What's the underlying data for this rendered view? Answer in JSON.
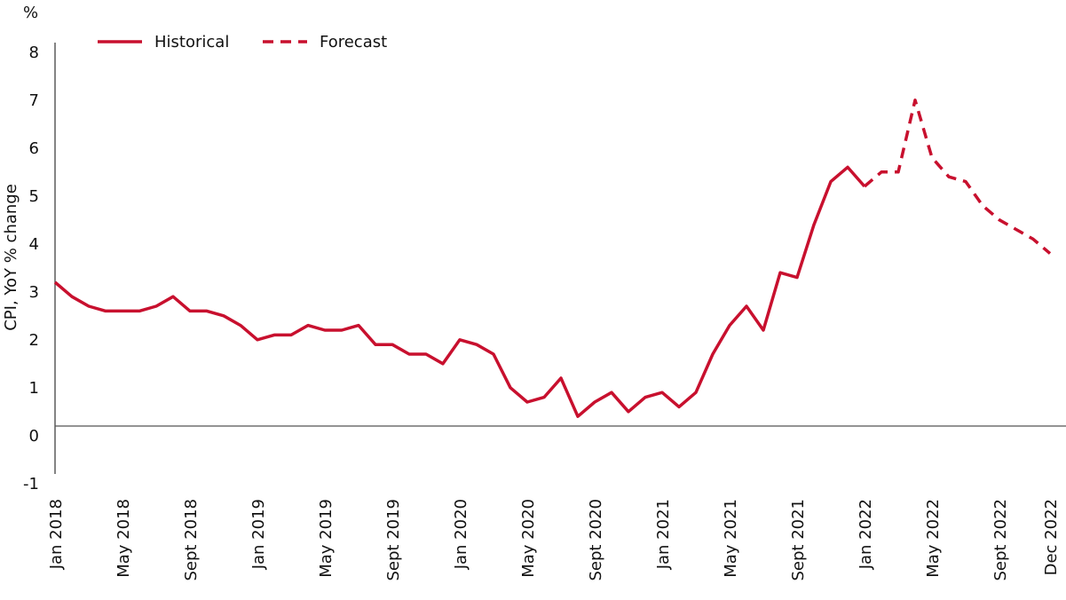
{
  "chart_data": {
    "type": "line",
    "y_unit": "%",
    "y_label": "CPI, YoY % change",
    "categories": [
      "Jan 2018",
      null,
      null,
      null,
      "May 2018",
      null,
      null,
      null,
      "Sept 2018",
      null,
      null,
      null,
      "Jan 2019",
      null,
      null,
      null,
      "May 2019",
      null,
      null,
      null,
      "Sept 2019",
      null,
      null,
      null,
      "Jan 2020",
      null,
      null,
      null,
      "May 2020",
      null,
      null,
      null,
      "Sept 2020",
      null,
      null,
      null,
      "Jan 2021",
      null,
      null,
      null,
      "May 2021",
      null,
      null,
      null,
      "Sept 2021",
      null,
      null,
      null,
      "Jan 2022",
      null,
      null,
      null,
      "May 2022",
      null,
      null,
      null,
      "Sept 2022",
      null,
      null,
      "Dec 2022"
    ],
    "series": [
      {
        "name": "Historical",
        "color": "#c8102e",
        "dashed": false,
        "values": [
          3.0,
          2.7,
          2.5,
          2.4,
          2.4,
          2.4,
          2.5,
          2.7,
          2.4,
          2.4,
          2.3,
          2.1,
          1.8,
          1.9,
          1.9,
          2.1,
          2.0,
          2.0,
          2.1,
          1.7,
          1.7,
          1.5,
          1.5,
          1.3,
          1.8,
          1.7,
          1.5,
          0.8,
          0.5,
          0.6,
          1.0,
          0.2,
          0.5,
          0.7,
          0.3,
          0.6,
          0.7,
          0.4,
          0.7,
          1.5,
          2.1,
          2.5,
          2.0,
          3.2,
          3.1,
          4.2,
          5.1,
          5.4,
          5.0,
          null,
          null,
          null,
          null,
          null,
          null,
          null,
          null,
          null,
          null,
          null
        ]
      },
      {
        "name": "Forecast",
        "color": "#c8102e",
        "dashed": true,
        "values": [
          null,
          null,
          null,
          null,
          null,
          null,
          null,
          null,
          null,
          null,
          null,
          null,
          null,
          null,
          null,
          null,
          null,
          null,
          null,
          null,
          null,
          null,
          null,
          null,
          null,
          null,
          null,
          null,
          null,
          null,
          null,
          null,
          null,
          null,
          null,
          null,
          null,
          null,
          null,
          null,
          null,
          null,
          null,
          null,
          null,
          null,
          null,
          null,
          5.0,
          5.3,
          5.3,
          6.8,
          5.6,
          5.2,
          5.1,
          4.6,
          4.3,
          4.1,
          3.9,
          3.6
        ]
      }
    ],
    "ylim": [
      -1,
      8
    ],
    "yticks": [
      -1,
      0,
      1,
      2,
      3,
      4,
      5,
      6,
      7,
      8
    ],
    "grid": false,
    "legend": "top"
  }
}
